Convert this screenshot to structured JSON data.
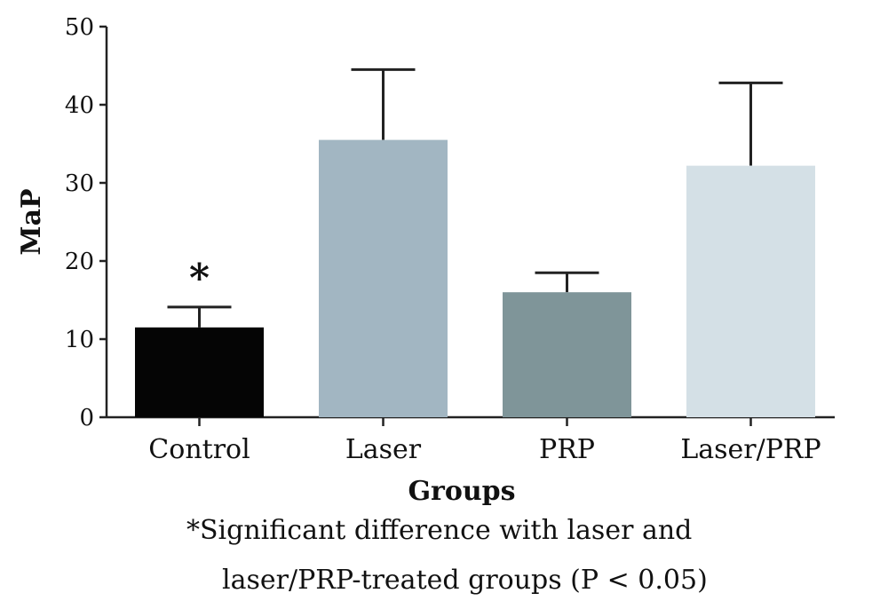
{
  "chart_data": {
    "type": "bar",
    "categories": [
      "Control",
      "Laser",
      "PRP",
      "Laser/PRP"
    ],
    "values": [
      11.5,
      35.5,
      16,
      32.2
    ],
    "errors": [
      2.6,
      9.0,
      2.5,
      10.6
    ],
    "colors": [
      "#050505",
      "#a2b6c2",
      "#7f9599",
      "#d4e0e6"
    ],
    "ylim": [
      0,
      50
    ],
    "yticks": [
      0,
      10,
      20,
      30,
      40,
      50
    ],
    "xlabel": "Groups",
    "ylabel": "MaP",
    "annotation": {
      "category": "Control",
      "text": "*"
    },
    "footnote": [
      "*Significant difference with laser and",
      "laser/PRP-treated groups (P < 0.05)"
    ]
  }
}
